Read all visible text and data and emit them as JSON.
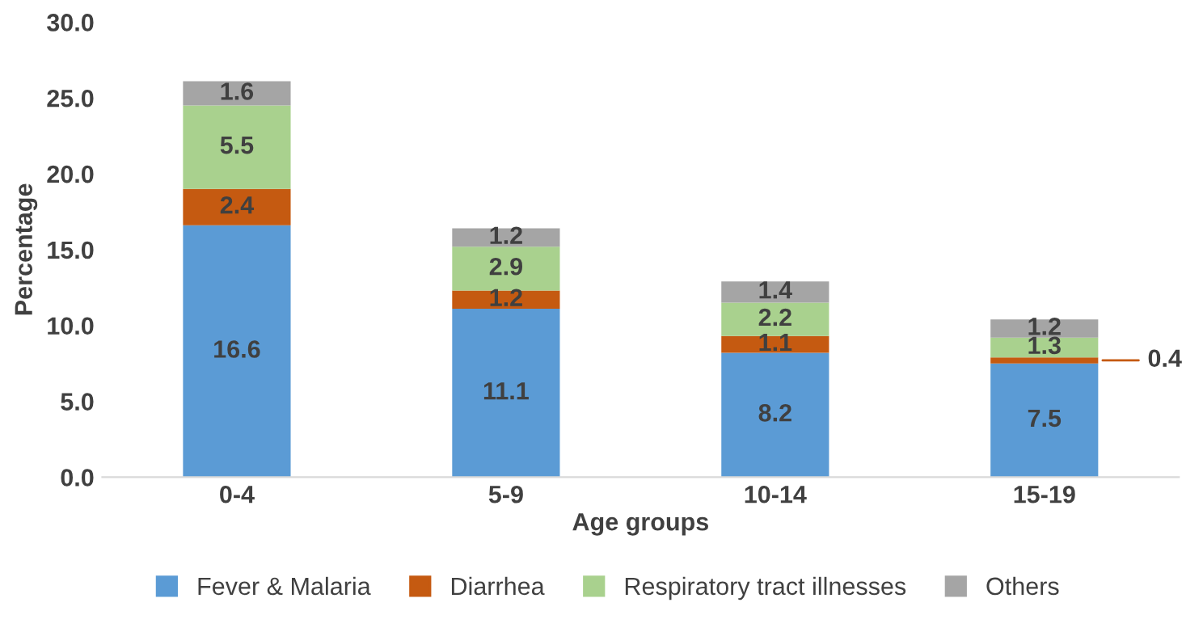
{
  "chart_data": {
    "type": "bar",
    "stacked": true,
    "categories": [
      "0-4",
      "5-9",
      "10-14",
      "15-19"
    ],
    "xlabel": "Age groups",
    "ylabel": "Percentage",
    "ylim": [
      0,
      30
    ],
    "yticks": [
      {
        "value": 0,
        "label": "0.0"
      },
      {
        "value": 5,
        "label": "5.0"
      },
      {
        "value": 10,
        "label": "10.0"
      },
      {
        "value": 15,
        "label": "15.0"
      },
      {
        "value": 20,
        "label": "20.0"
      },
      {
        "value": 25,
        "label": "25.0"
      },
      {
        "value": 30,
        "label": "30.0"
      }
    ],
    "series": [
      {
        "name": "Fever & Malaria",
        "color": "#5b9bd5",
        "values": [
          16.6,
          11.1,
          8.2,
          7.5
        ],
        "value_labels": [
          "16.6",
          "11.1",
          "8.2",
          "7.5"
        ]
      },
      {
        "name": "Diarrhea",
        "color": "#c55a11",
        "values": [
          2.4,
          1.2,
          1.1,
          0.4
        ],
        "value_labels": [
          "2.4",
          "1.2",
          "1.1",
          "0.4"
        ]
      },
      {
        "name": "Respiratory tract illnesses",
        "color": "#a9d18e",
        "values": [
          5.5,
          2.9,
          2.2,
          1.3
        ],
        "value_labels": [
          "5.5",
          "2.9",
          "2.2",
          "1.3"
        ]
      },
      {
        "name": "Others",
        "color": "#a5a5a5",
        "values": [
          1.6,
          1.2,
          1.4,
          1.2
        ],
        "value_labels": [
          "1.6",
          "1.2",
          "1.4",
          "1.2"
        ]
      }
    ],
    "grid": false,
    "legend": "bottom"
  }
}
